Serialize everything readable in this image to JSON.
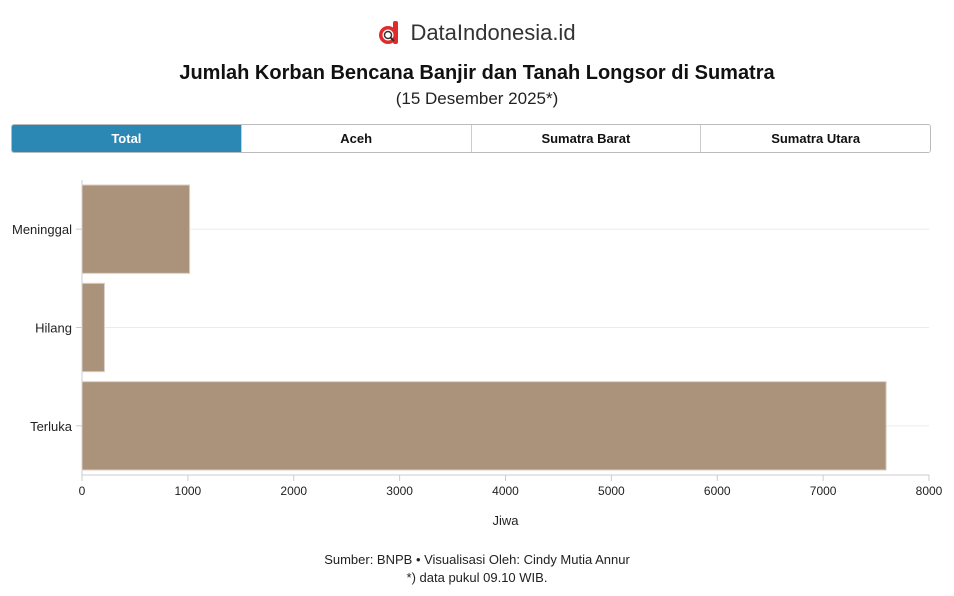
{
  "logo": {
    "text": "DataIndonesia.id",
    "color": "#e32a2a"
  },
  "header": {
    "title": "Jumlah Korban Bencana Banjir dan Tanah Longsor di Sumatra",
    "subtitle": "(15 Desember 2025*)"
  },
  "tabs": [
    {
      "label": "Total",
      "active": true
    },
    {
      "label": "Aceh",
      "active": false
    },
    {
      "label": "Sumatra Barat",
      "active": false
    },
    {
      "label": "Sumatra Utara",
      "active": false
    }
  ],
  "accent_color": "#2b88b5",
  "chart_data": {
    "type": "bar",
    "orientation": "horizontal",
    "categories": [
      "Meninggal",
      "Hilang",
      "Terluka"
    ],
    "values": [
      1016,
      212,
      7595
    ],
    "xlabel": "Jiwa",
    "ylabel": "",
    "xlim": [
      0,
      8000
    ],
    "xticks": [
      "0",
      "1000",
      "2000",
      "3000",
      "4000",
      "5000",
      "6000",
      "7000",
      "8000"
    ],
    "bar_color": "#ab927a",
    "grid": true
  },
  "footer": {
    "line1": "Sumber: BNPB • Visualisasi Oleh: Cindy Mutia Annur",
    "line2": "*) data pukul 09.10 WIB."
  }
}
